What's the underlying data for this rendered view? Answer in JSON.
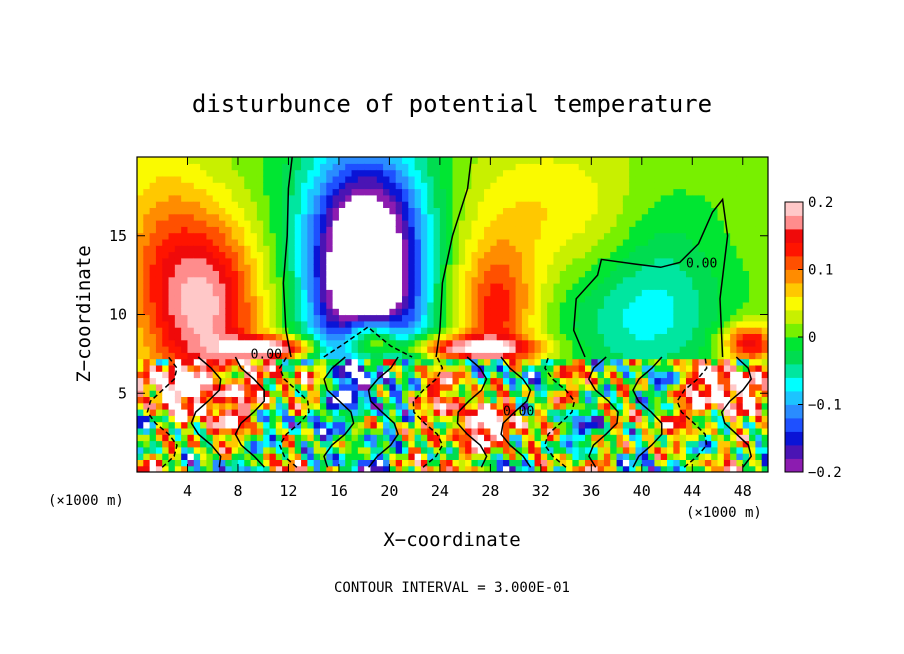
{
  "chart_data": {
    "type": "heatmap",
    "title": "disturbunce of potential temperature",
    "xlabel": "X−coordinate",
    "ylabel": "Z−coordinate",
    "x_unit": "(×1000 m)",
    "x_unit_right": "(×1000 m)",
    "xlim": [
      0,
      50
    ],
    "ylim": [
      0,
      20
    ],
    "x_ticks": [
      4,
      8,
      12,
      16,
      20,
      24,
      28,
      32,
      36,
      40,
      44,
      48
    ],
    "x_tick_labels": [
      "4",
      "8",
      "12",
      "16",
      "20",
      "24",
      "28",
      "32",
      "36",
      "40",
      "44",
      "48"
    ],
    "y_ticks": [
      5,
      10,
      15
    ],
    "y_tick_labels": [
      "5",
      "10",
      "15"
    ],
    "colorbar": {
      "range": [
        -0.2,
        0.2
      ],
      "ticks": [
        0.2,
        0.1,
        0,
        -0.1,
        -0.2
      ],
      "tick_labels": [
        "0.2",
        "0.1",
        "0",
        "−0.1",
        "−0.2"
      ],
      "colors": [
        "#8c1cb0",
        "#4a14b4",
        "#0a14d6",
        "#1e50ff",
        "#2a8cff",
        "#1cc4ff",
        "#00ffff",
        "#00e6a0",
        "#00dc50",
        "#00e632",
        "#78f000",
        "#c8f000",
        "#fafa00",
        "#ffc800",
        "#ff8c00",
        "#ff5000",
        "#ff1400",
        "#f00a0a",
        "#ff8c8c",
        "#ffc8c8"
      ]
    },
    "contour_labels": [
      {
        "text": "0.00",
        "x": 43.5,
        "z": 13.0
      },
      {
        "text": "0.00",
        "x": 9.0,
        "z": 7.2
      },
      {
        "text": "0.00",
        "x": 29.0,
        "z": 3.6
      }
    ],
    "features": [
      {
        "kind": "warm",
        "center_x": 5.5,
        "center_z": 11.0,
        "value": 0.16
      },
      {
        "kind": "cold",
        "center_x": 18.0,
        "center_z": 12.5,
        "value": -0.18
      },
      {
        "kind": "warm",
        "center_x": 28.5,
        "center_z": 10.5,
        "value": 0.1
      },
      {
        "kind": "cold",
        "center_x": 40.0,
        "center_z": 9.5,
        "value": -0.06
      }
    ],
    "contour_interval": "CONTOUR INTERVAL = 3.000E-01"
  }
}
